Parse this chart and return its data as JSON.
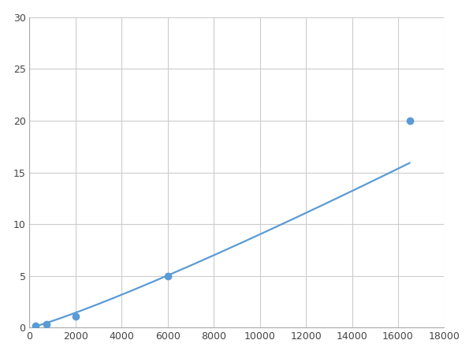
{
  "x_points": [
    250,
    750,
    2000,
    6000,
    16500
  ],
  "y_points": [
    0.2,
    0.35,
    1.1,
    5.0,
    20.0
  ],
  "line_color": "#5B9BD5",
  "marker_color": "#5B9BD5",
  "marker_size": 6,
  "linewidth": 1.6,
  "xlim": [
    0,
    18000
  ],
  "ylim": [
    0,
    30
  ],
  "xticks": [
    0,
    2000,
    4000,
    6000,
    8000,
    10000,
    12000,
    14000,
    16000,
    18000
  ],
  "yticks": [
    0,
    5,
    10,
    15,
    20,
    25,
    30
  ],
  "grid_color": "#cccccc",
  "grid_linewidth": 0.8,
  "background_color": "#ffffff",
  "fig_width": 6.0,
  "fig_height": 4.5,
  "dpi": 100
}
